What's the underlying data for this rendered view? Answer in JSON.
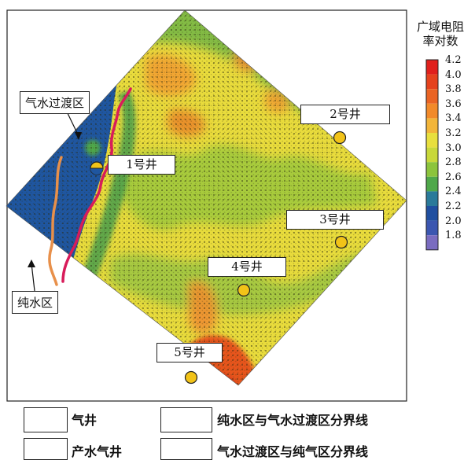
{
  "colorbar": {
    "title_line1": "广域电阻",
    "title_line2": "率对数",
    "ticks": [
      "4.2",
      "4.0",
      "3.8",
      "3.6",
      "3.4",
      "3.2",
      "3.0",
      "2.8",
      "2.6",
      "2.4",
      "2.2",
      "2.0",
      "1.8"
    ],
    "colors": [
      "#e0201c",
      "#e5421d",
      "#ea6424",
      "#f28a2a",
      "#f2b53a",
      "#e8df3e",
      "#c8d83a",
      "#8cc43c",
      "#4fa84a",
      "#2a7a9a",
      "#1f4fa0",
      "#3b56b0",
      "#7a6cc0"
    ]
  },
  "wells": [
    {
      "label": "1号井",
      "type": "产水气井"
    },
    {
      "label": "2号井",
      "type": "气井"
    },
    {
      "label": "3号井",
      "type": "气井"
    },
    {
      "label": "4号井",
      "type": "气井"
    },
    {
      "label": "5号井",
      "type": "气井"
    }
  ],
  "zones": {
    "transition_zone": "气水过渡区",
    "pure_water_zone": "纯水区"
  },
  "legend": {
    "gas_well": "气井",
    "water_producing_well": "产水气井",
    "water_transition_boundary": "纯水区与气水过渡区分界线",
    "transition_gas_boundary": "气水过渡区与纯气区分界线"
  },
  "colors": {
    "water_boundary": "#e8904a",
    "gas_boundary": "#d81c5a",
    "well_fill": "#f2c318"
  }
}
